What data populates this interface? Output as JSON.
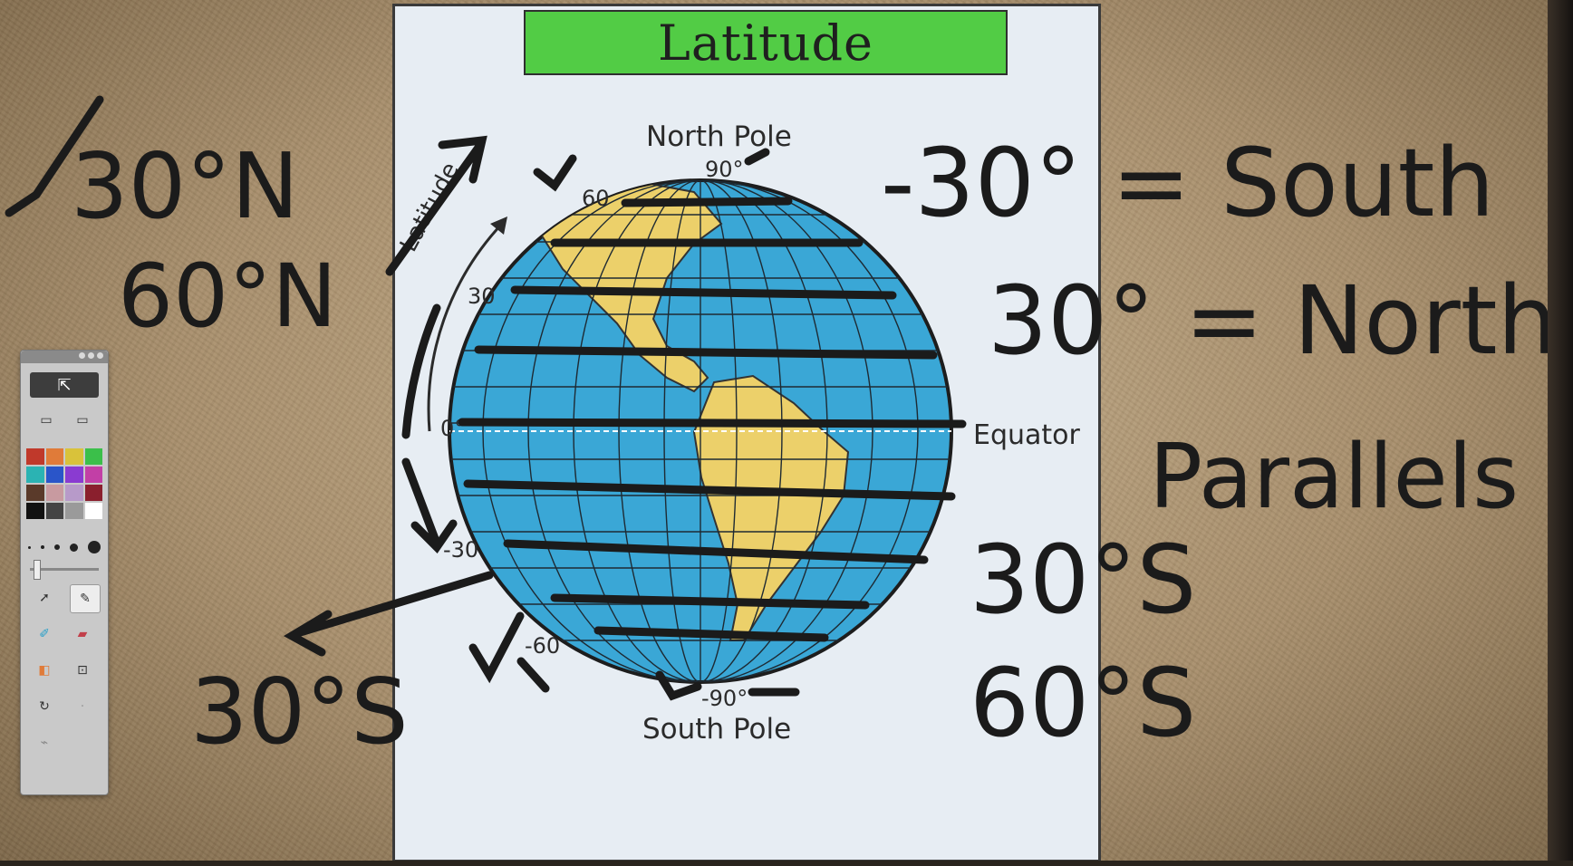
{
  "slide": {
    "title": "Latitude",
    "label_north_pole": "North Pole",
    "label_south_pole": "South Pole",
    "label_equator": "Equator",
    "arc_label": "Latitude",
    "lat_90": "90°",
    "lat_60": "60",
    "lat_30": "30",
    "lat_0": "0°",
    "lat_neg30": "-30",
    "lat_neg60": "-60",
    "lat_neg90": "-90°"
  },
  "ink": {
    "n30": "30°N",
    "n60": "60°N",
    "s30_left": "30°S",
    "neg30_eq": "-30° = South",
    "pos30_eq": "30° = North",
    "parallels": "Parallels",
    "s30": "30°S",
    "s60": "60°S"
  },
  "colors": {
    "ocean": "#3aa7d6",
    "land": "#ecd06a",
    "banner": "#52cc45",
    "ink": "#1b1b1b"
  },
  "toolbox": {
    "share_icon": "share-icon",
    "palette": [
      "#c0392b",
      "#e07b39",
      "#d9c23a",
      "#3bbf4a",
      "#2bb3b3",
      "#2a55c9",
      "#8a3bd1",
      "#c23fa6",
      "#5a3a2a",
      "#c89aa0",
      "#b79ac9",
      "#8a1f2d",
      "#111111",
      "#444444",
      "#9a9a9a",
      "#ffffff"
    ]
  }
}
